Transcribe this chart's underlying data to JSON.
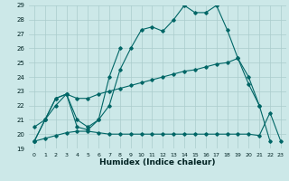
{
  "title": "",
  "xlabel": "Humidex (Indice chaleur)",
  "bg_color": "#cce8e8",
  "line_color": "#006666",
  "grid_color": "#aacccc",
  "xlim": [
    -0.5,
    23.5
  ],
  "ylim": [
    19,
    29
  ],
  "line1_x": [
    0,
    1,
    2,
    3,
    4,
    5,
    6,
    7,
    8,
    9,
    10,
    11,
    12,
    13,
    14,
    15,
    16,
    17,
    18,
    19,
    20,
    21,
    22
  ],
  "line1_y": [
    19.5,
    21.0,
    22.5,
    22.8,
    21.0,
    20.5,
    21.0,
    22.0,
    24.5,
    26.0,
    27.3,
    27.5,
    27.2,
    28.0,
    29.0,
    28.5,
    28.5,
    29.0,
    27.3,
    25.3,
    24.0,
    22.0,
    19.5
  ],
  "line2_x": [
    0,
    1,
    2,
    3,
    4,
    5,
    6,
    7,
    8
  ],
  "line2_y": [
    19.5,
    21.0,
    22.5,
    22.8,
    20.5,
    20.3,
    21.0,
    24.0,
    26.0
  ],
  "line3_x": [
    0,
    1,
    2,
    3,
    4,
    5,
    6,
    7,
    8,
    9,
    10,
    11,
    12,
    13,
    14,
    15,
    16,
    17,
    18,
    19,
    20,
    21
  ],
  "line3_y": [
    20.5,
    21.0,
    22.0,
    22.8,
    22.5,
    22.5,
    22.8,
    23.0,
    23.2,
    23.4,
    23.6,
    23.8,
    24.0,
    24.2,
    24.4,
    24.5,
    24.7,
    24.9,
    25.0,
    25.3,
    23.5,
    22.0
  ],
  "line4_x": [
    0,
    1,
    2,
    3,
    4,
    5,
    6,
    7,
    8,
    9,
    10,
    11,
    12,
    13,
    14,
    15,
    16,
    17,
    18,
    19,
    20,
    21,
    22,
    23
  ],
  "line4_y": [
    19.5,
    19.7,
    19.9,
    20.1,
    20.2,
    20.2,
    20.1,
    20.0,
    20.0,
    20.0,
    20.0,
    20.0,
    20.0,
    20.0,
    20.0,
    20.0,
    20.0,
    20.0,
    20.0,
    20.0,
    20.0,
    19.9,
    21.5,
    19.5
  ]
}
